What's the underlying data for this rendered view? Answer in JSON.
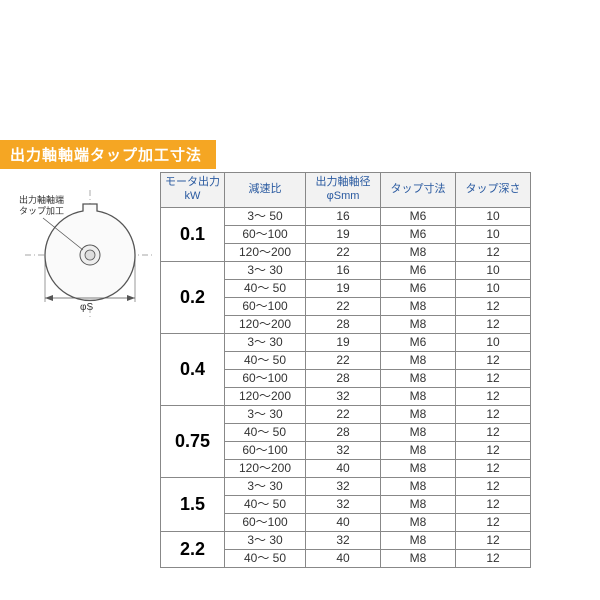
{
  "title": "出力軸軸端タップ加工寸法",
  "diagram": {
    "anno_top": "出力軸軸端",
    "anno_bottom": "タップ加工",
    "dim_label": "φS"
  },
  "headers": {
    "motor": "モータ出力\nkW",
    "ratio": "減速比",
    "shaft": "出力軸軸径\nφSmm",
    "tap_size": "タップ寸法",
    "tap_depth": "タップ深さ"
  },
  "groups": [
    {
      "motor": "0.1",
      "rows": [
        {
          "ratio": "3～ 50",
          "shaft": "16",
          "tap_size": "M6",
          "tap_depth": "10"
        },
        {
          "ratio": "60～100",
          "shaft": "19",
          "tap_size": "M6",
          "tap_depth": "10"
        },
        {
          "ratio": "120～200",
          "shaft": "22",
          "tap_size": "M8",
          "tap_depth": "12"
        }
      ]
    },
    {
      "motor": "0.2",
      "rows": [
        {
          "ratio": "3～ 30",
          "shaft": "16",
          "tap_size": "M6",
          "tap_depth": "10"
        },
        {
          "ratio": "40～ 50",
          "shaft": "19",
          "tap_size": "M6",
          "tap_depth": "10"
        },
        {
          "ratio": "60～100",
          "shaft": "22",
          "tap_size": "M8",
          "tap_depth": "12"
        },
        {
          "ratio": "120～200",
          "shaft": "28",
          "tap_size": "M8",
          "tap_depth": "12"
        }
      ]
    },
    {
      "motor": "0.4",
      "rows": [
        {
          "ratio": "3～ 30",
          "shaft": "19",
          "tap_size": "M6",
          "tap_depth": "10"
        },
        {
          "ratio": "40～ 50",
          "shaft": "22",
          "tap_size": "M8",
          "tap_depth": "12"
        },
        {
          "ratio": "60～100",
          "shaft": "28",
          "tap_size": "M8",
          "tap_depth": "12"
        },
        {
          "ratio": "120～200",
          "shaft": "32",
          "tap_size": "M8",
          "tap_depth": "12"
        }
      ]
    },
    {
      "motor": "0.75",
      "rows": [
        {
          "ratio": "3～ 30",
          "shaft": "22",
          "tap_size": "M8",
          "tap_depth": "12"
        },
        {
          "ratio": "40～ 50",
          "shaft": "28",
          "tap_size": "M8",
          "tap_depth": "12"
        },
        {
          "ratio": "60～100",
          "shaft": "32",
          "tap_size": "M8",
          "tap_depth": "12"
        },
        {
          "ratio": "120～200",
          "shaft": "40",
          "tap_size": "M8",
          "tap_depth": "12"
        }
      ]
    },
    {
      "motor": "1.5",
      "rows": [
        {
          "ratio": "3～ 30",
          "shaft": "32",
          "tap_size": "M8",
          "tap_depth": "12"
        },
        {
          "ratio": "40～ 50",
          "shaft": "32",
          "tap_size": "M8",
          "tap_depth": "12"
        },
        {
          "ratio": "60～100",
          "shaft": "40",
          "tap_size": "M8",
          "tap_depth": "12"
        }
      ]
    },
    {
      "motor": "2.2",
      "rows": [
        {
          "ratio": "3～ 30",
          "shaft": "32",
          "tap_size": "M8",
          "tap_depth": "12"
        },
        {
          "ratio": "40～ 50",
          "shaft": "40",
          "tap_size": "M8",
          "tap_depth": "12"
        }
      ]
    }
  ],
  "colors": {
    "title_bg": "#f5a623",
    "title_fg": "#ffffff",
    "header_bg": "#f2f2f2",
    "header_fg": "#2a5aa0",
    "border": "#888888"
  }
}
